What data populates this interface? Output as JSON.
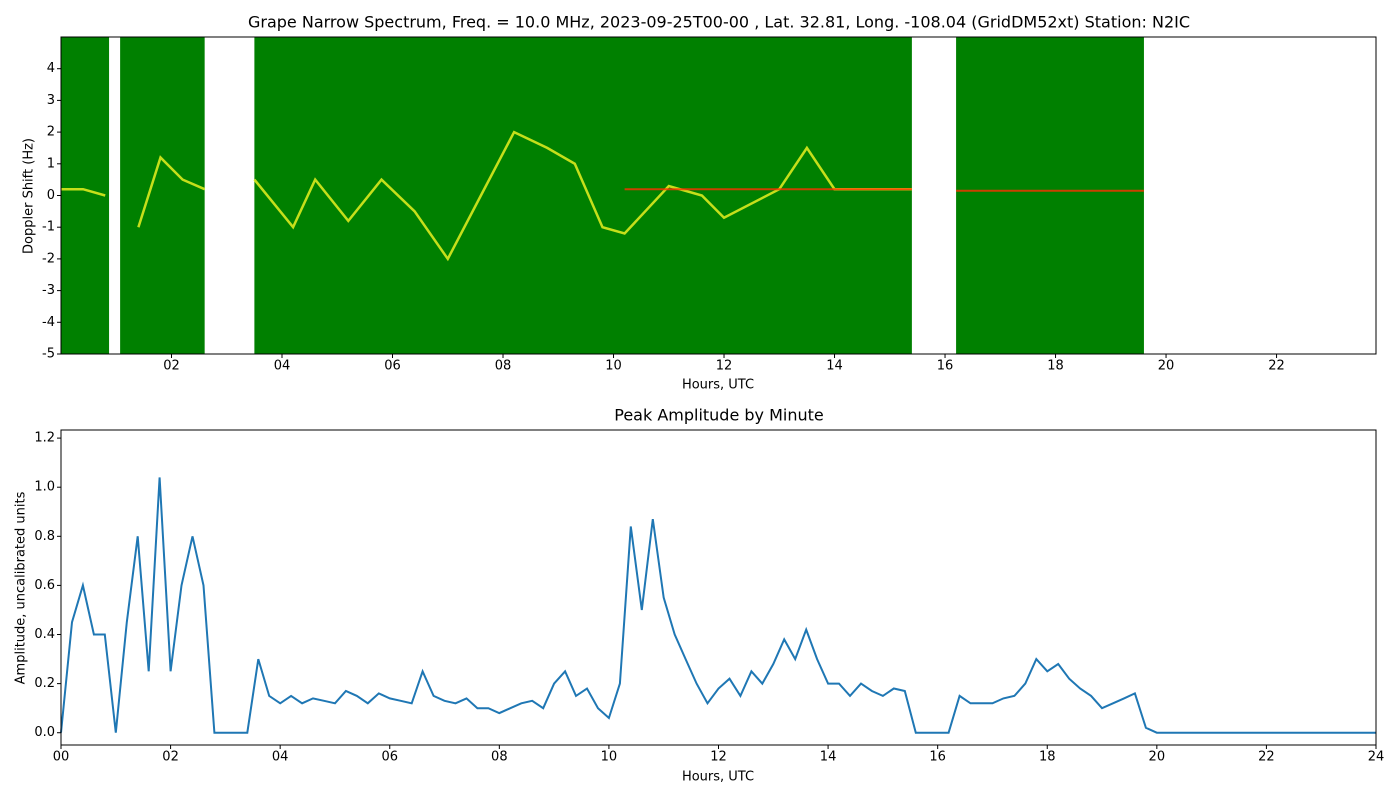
{
  "chart_data": [
    {
      "type": "spectrogram",
      "title": "Grape Narrow Spectrum, Freq. = 10.0 MHz, 2023-09-25T00-00 , Lat.  32.81, Long. -108.04 (GridDM52xt) Station: N2IC",
      "xlabel": "Hours, UTC",
      "ylabel": "Doppler Shift (Hz)",
      "xlim": [
        0,
        23.8
      ],
      "ylim": [
        -5,
        5
      ],
      "xticks": [
        {
          "value": 2,
          "label": "02"
        },
        {
          "value": 4,
          "label": "04"
        },
        {
          "value": 6,
          "label": "06"
        },
        {
          "value": 8,
          "label": "08"
        },
        {
          "value": 10,
          "label": "10"
        },
        {
          "value": 12,
          "label": "12"
        },
        {
          "value": 14,
          "label": "14"
        },
        {
          "value": 16,
          "label": "16"
        },
        {
          "value": 18,
          "label": "18"
        },
        {
          "value": 20,
          "label": "20"
        },
        {
          "value": 22,
          "label": "22"
        }
      ],
      "yticks": [
        -5,
        -4,
        -3,
        -2,
        -1,
        0,
        1,
        2,
        3,
        4
      ],
      "segments": [
        [
          0,
          0.87
        ],
        [
          1.07,
          2.6
        ],
        [
          3.5,
          15.4
        ],
        [
          16.2,
          19.6
        ]
      ],
      "color": "#008000",
      "trace": {
        "color": "#e8f020",
        "x": [
          0,
          0.4,
          0.8,
          1.1,
          1.4,
          1.8,
          2.2,
          2.6,
          3.0,
          3.5,
          4.2,
          4.6,
          5.2,
          5.8,
          6.4,
          7.0,
          7.6,
          8.2,
          8.8,
          9.3,
          9.8,
          10.2,
          11.0,
          11.6,
          12.0,
          13.0,
          13.5,
          14.0,
          15.4
        ],
        "y": [
          0.2,
          0.2,
          0,
          null,
          -1,
          1.2,
          0.5,
          0.2,
          null,
          0.5,
          -1,
          0.5,
          -0.8,
          0.5,
          -0.5,
          -2,
          0,
          2,
          1.5,
          1,
          -1,
          -1.2,
          0.3,
          0,
          -0.7,
          0.2,
          1.5,
          0.2,
          0.2
        ]
      },
      "carrier": {
        "color": "#ff3000",
        "x": [
          10.2,
          12.0,
          15.4,
          15.8,
          16.2,
          18.0,
          19.6
        ],
        "y": [
          0.2,
          0.2,
          0.2,
          null,
          0.15,
          0.15,
          0.15
        ]
      }
    },
    {
      "type": "line",
      "title": "Peak Amplitude by Minute",
      "xlabel": "Hours, UTC",
      "ylabel": "Amplitude, uncalibrated units",
      "xlim": [
        0,
        24
      ],
      "ylim": [
        -0.05,
        1.233
      ],
      "xticks": [
        {
          "value": 0,
          "label": "00"
        },
        {
          "value": 2,
          "label": "02"
        },
        {
          "value": 4,
          "label": "04"
        },
        {
          "value": 6,
          "label": "06"
        },
        {
          "value": 8,
          "label": "08"
        },
        {
          "value": 10,
          "label": "10"
        },
        {
          "value": 12,
          "label": "12"
        },
        {
          "value": 14,
          "label": "14"
        },
        {
          "value": 16,
          "label": "16"
        },
        {
          "value": 18,
          "label": "18"
        },
        {
          "value": 20,
          "label": "20"
        },
        {
          "value": 22,
          "label": "22"
        },
        {
          "value": 24,
          "label": "24"
        }
      ],
      "yticks": [
        {
          "value": 0,
          "label": "0.0"
        },
        0.2,
        0.4,
        0.6,
        0.8,
        {
          "value": 1,
          "label": "1.0"
        },
        1.2
      ],
      "color": "#1f77b4",
      "x": [
        0,
        0.2,
        0.4,
        0.6,
        0.8,
        1,
        1.2,
        1.4,
        1.6,
        1.8,
        2,
        2.2,
        2.4,
        2.6,
        2.8,
        3,
        3.2,
        3.4,
        3.6,
        3.8,
        4,
        4.2,
        4.4,
        4.6,
        4.8,
        5,
        5.2,
        5.4,
        5.6,
        5.8,
        6,
        6.2,
        6.4,
        6.6,
        6.8,
        7,
        7.2,
        7.4,
        7.6,
        7.8,
        8,
        8.2,
        8.4,
        8.6,
        8.8,
        9,
        9.2,
        9.4,
        9.6,
        9.8,
        10,
        10.2,
        10.4,
        10.6,
        10.8,
        11,
        11.2,
        11.4,
        11.6,
        11.8,
        12,
        12.2,
        12.4,
        12.6,
        12.8,
        13,
        13.2,
        13.4,
        13.6,
        13.8,
        14,
        14.2,
        14.4,
        14.6,
        14.8,
        15,
        15.2,
        15.4,
        15.6,
        15.8,
        16,
        16.2,
        16.4,
        16.6,
        16.8,
        17,
        17.2,
        17.4,
        17.6,
        17.8,
        18,
        18.2,
        18.4,
        18.6,
        18.8,
        19,
        19.2,
        19.4,
        19.6,
        19.8,
        20,
        20.2,
        20.4,
        20.6,
        20.8,
        21,
        21.2,
        21.4,
        21.6,
        21.8,
        22,
        22.2,
        22.4,
        22.6,
        22.8,
        23,
        23.2,
        23.4,
        23.6,
        23.8,
        24
      ],
      "values": [
        0,
        0.45,
        0.6,
        0.4,
        0.4,
        0,
        0.45,
        0.8,
        0.25,
        1.04,
        0.25,
        0.6,
        0.8,
        0.6,
        0,
        0,
        0,
        0,
        0.3,
        0.15,
        0.12,
        0.15,
        0.12,
        0.14,
        0.13,
        0.12,
        0.17,
        0.15,
        0.12,
        0.16,
        0.14,
        0.13,
        0.12,
        0.25,
        0.15,
        0.13,
        0.12,
        0.14,
        0.1,
        0.1,
        0.08,
        0.1,
        0.12,
        0.13,
        0.1,
        0.2,
        0.25,
        0.15,
        0.18,
        0.1,
        0.06,
        0.2,
        0.84,
        0.5,
        0.87,
        0.55,
        0.4,
        0.3,
        0.2,
        0.12,
        0.18,
        0.22,
        0.15,
        0.25,
        0.2,
        0.28,
        0.38,
        0.3,
        0.42,
        0.3,
        0.2,
        0.2,
        0.15,
        0.2,
        0.17,
        0.15,
        0.18,
        0.17,
        0,
        0,
        0,
        0,
        0.15,
        0.12,
        0.12,
        0.12,
        0.14,
        0.15,
        0.2,
        0.3,
        0.25,
        0.28,
        0.22,
        0.18,
        0.15,
        0.1,
        0.12,
        0.14,
        0.16,
        0.02,
        0,
        0,
        0,
        0,
        0,
        0,
        0,
        0,
        0,
        0,
        0,
        0,
        0,
        0,
        0,
        0,
        0,
        0,
        0,
        0,
        0
      ]
    }
  ]
}
